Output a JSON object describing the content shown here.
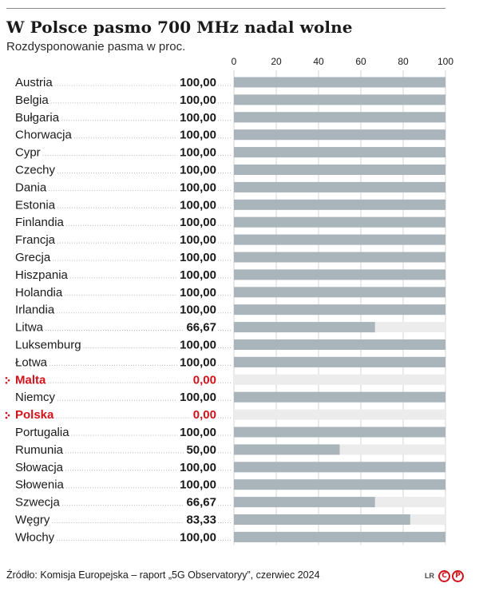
{
  "chart_data": {
    "type": "bar",
    "orientation": "horizontal",
    "title": "W Polsce pasmo 700 MHz nadal wolne",
    "subtitle": "Rozdysponowanie pasma w proc.",
    "xlim": [
      0,
      100
    ],
    "xticks": [
      "0",
      "20",
      "40",
      "60",
      "80",
      "100"
    ],
    "grid": true,
    "categories": [
      "Austria",
      "Belgia",
      "Bułgaria",
      "Chorwacja",
      "Cypr",
      "Czechy",
      "Dania",
      "Estonia",
      "Finlandia",
      "Francja",
      "Grecja",
      "Hiszpania",
      "Holandia",
      "Irlandia",
      "Litwa",
      "Luksemburg",
      "Łotwa",
      "Malta",
      "Niemcy",
      "Polska",
      "Portugalia",
      "Rumunia",
      "Słowacja",
      "Słowenia",
      "Szwecja",
      "Węgry",
      "Włochy"
    ],
    "values": [
      100,
      100,
      100,
      100,
      100,
      100,
      100,
      100,
      100,
      100,
      100,
      100,
      100,
      100,
      66.67,
      100,
      100,
      0,
      100,
      0,
      100,
      50,
      100,
      100,
      66.67,
      83.33,
      100
    ],
    "value_labels": [
      "100,00",
      "100,00",
      "100,00",
      "100,00",
      "100,00",
      "100,00",
      "100,00",
      "100,00",
      "100,00",
      "100,00",
      "100,00",
      "100,00",
      "100,00",
      "100,00",
      "66,67",
      "100,00",
      "100,00",
      "0,00",
      "100,00",
      "0,00",
      "100,00",
      "50,00",
      "100,00",
      "100,00",
      "66,67",
      "83,33",
      "100,00"
    ],
    "highlighted": [
      "Malta",
      "Polska"
    ],
    "colors": {
      "bar": "#aab4bb",
      "track": "#ececec",
      "text": "#1a1a1a",
      "highlight": "#d0121b",
      "leader": "#b8b8b8"
    }
  },
  "footer": {
    "source": "Źródło: Komisja Europejska – raport „5G Observatoryy”, czerwiec 2024",
    "logo_text": "LR",
    "logo_mark_1": "C",
    "logo_mark_2": "P"
  }
}
